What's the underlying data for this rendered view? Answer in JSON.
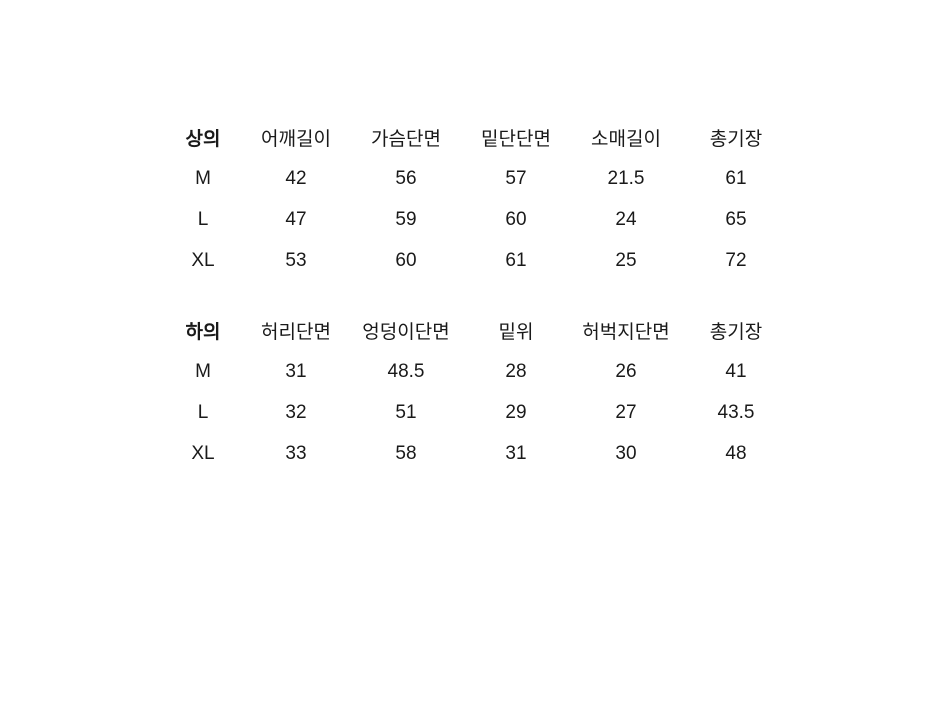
{
  "page": {
    "background": "#ffffff",
    "text_color": "#1a1a1a"
  },
  "size_charts": [
    {
      "id": "tops",
      "header": [
        "상의",
        "어깨길이",
        "가슴단면",
        "밑단단면",
        "소매길이",
        "총기장"
      ],
      "rows": [
        [
          "M",
          "42",
          "56",
          "57",
          "21.5",
          "61"
        ],
        [
          "L",
          "47",
          "59",
          "60",
          "24",
          "65"
        ],
        [
          "XL",
          "53",
          "60",
          "61",
          "25",
          "72"
        ]
      ]
    },
    {
      "id": "bottoms",
      "header": [
        "하의",
        "허리단면",
        "엉덩이단면",
        "밑위",
        "허벅지단면",
        "총기장"
      ],
      "rows": [
        [
          "M",
          "31",
          "48.5",
          "28",
          "26",
          "41"
        ],
        [
          "L",
          "32",
          "51",
          "29",
          "27",
          "43.5"
        ],
        [
          "XL",
          "33",
          "58",
          "31",
          "30",
          "48"
        ]
      ]
    }
  ]
}
